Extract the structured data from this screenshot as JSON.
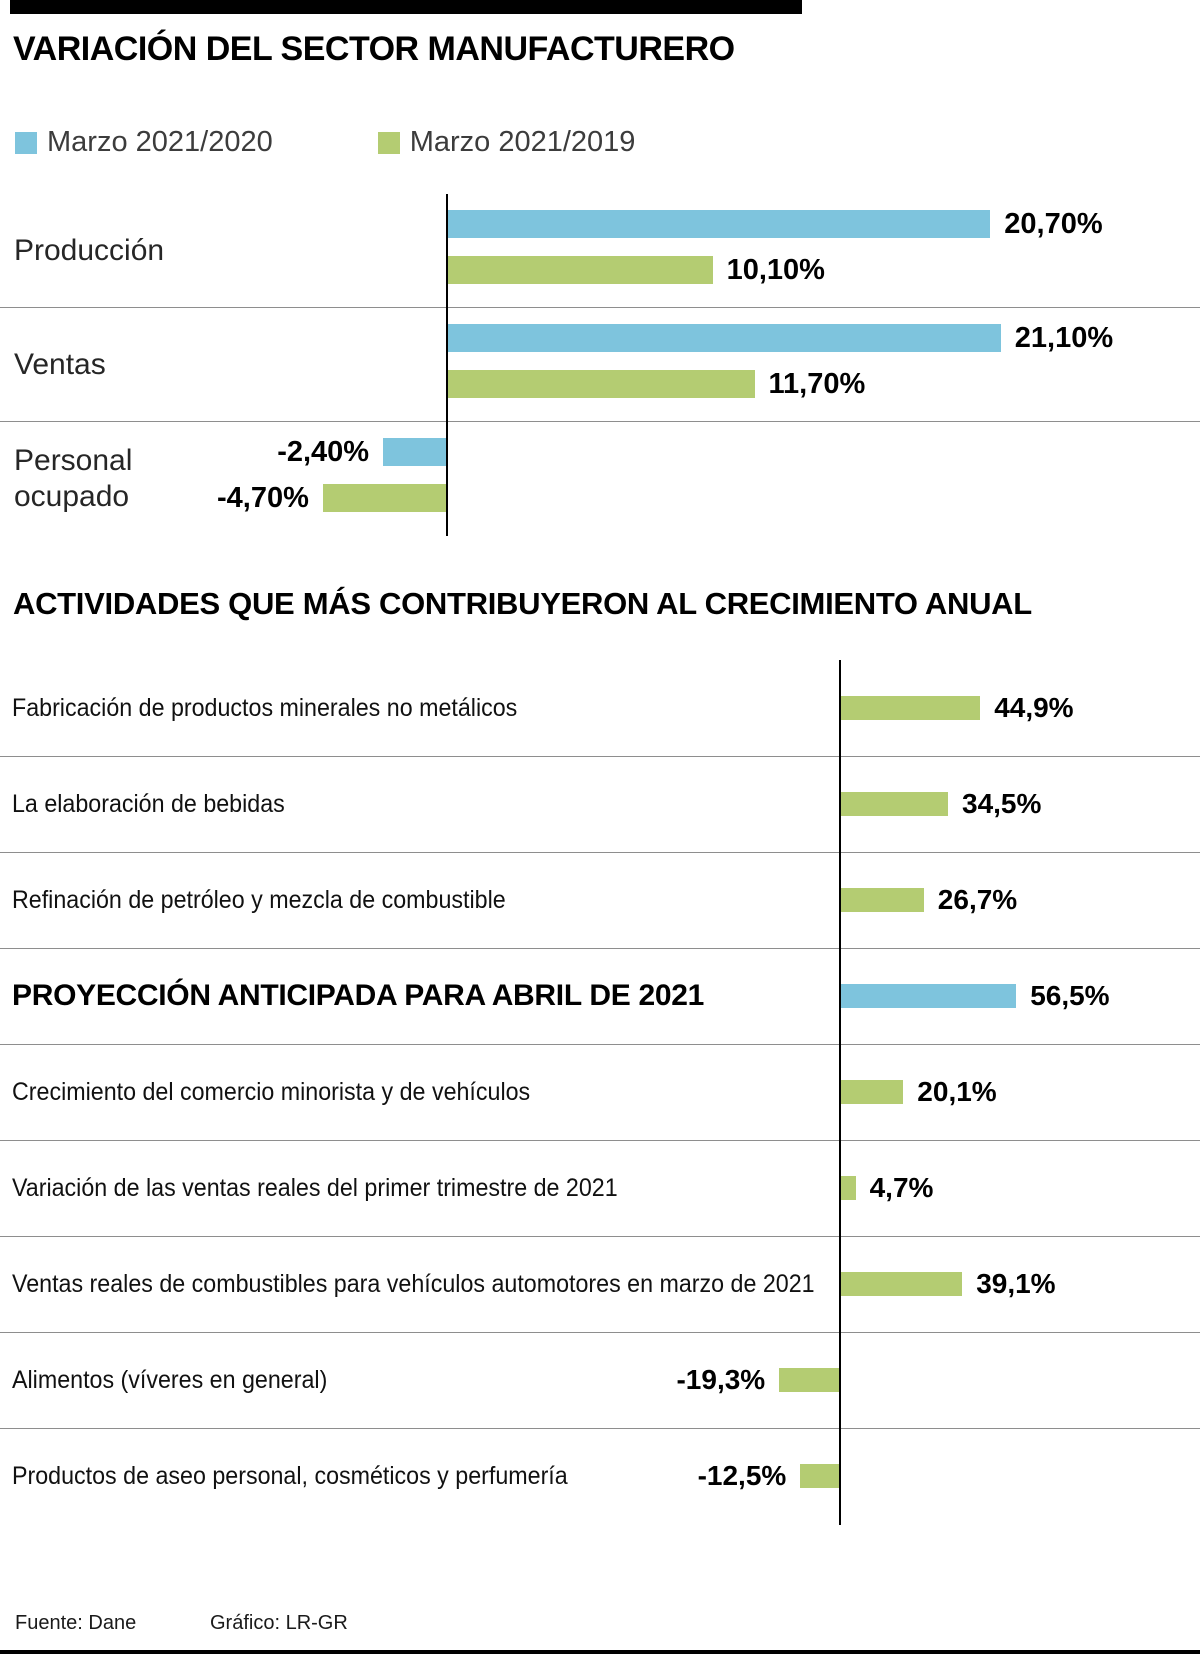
{
  "page": {
    "title": "VARIACIÓN DEL SECTOR MANUFACTURERO",
    "footer": {
      "source": "Fuente: Dane",
      "credit": "Gráfico: LR-GR"
    }
  },
  "colors": {
    "blue": "#7EC4DD",
    "green": "#B4CC72",
    "axis": "#000000",
    "divider": "#8E8E8E",
    "accent_bar": "#000000"
  },
  "chart_data": [
    {
      "type": "bar",
      "orientation": "horizontal",
      "title": "VARIACIÓN DEL SECTOR MANUFACTURERO",
      "legend_position": "top",
      "grid": false,
      "xlim": [
        -5,
        25
      ],
      "categories": [
        "Producción",
        "Ventas",
        "Personal ocupado"
      ],
      "series": [
        {
          "name": "Marzo 2021/2020",
          "color_key": "blue",
          "values": [
            20.7,
            21.1,
            -2.4
          ],
          "value_labels": [
            "20,70%",
            "21,10%",
            "-2,40%"
          ]
        },
        {
          "name": "Marzo 2021/2019",
          "color_key": "green",
          "values": [
            10.1,
            11.7,
            -4.7
          ],
          "value_labels": [
            "10,10%",
            "11,70%",
            "-4,70%"
          ]
        }
      ]
    },
    {
      "type": "bar",
      "orientation": "horizontal",
      "title": "ACTIVIDADES QUE MÁS CONTRIBUYERON AL CRECIMIENTO ANUAL",
      "grid": false,
      "xlim": [
        -25,
        60
      ],
      "rows": [
        {
          "label": "Fabricación de productos minerales no metálicos",
          "value": 44.9,
          "value_label": "44,9%",
          "color_key": "green",
          "header": false
        },
        {
          "label": "La elaboración de bebidas",
          "value": 34.5,
          "value_label": "34,5%",
          "color_key": "green",
          "header": false
        },
        {
          "label": "Refinación de petróleo y mezcla de combustible",
          "value": 26.7,
          "value_label": "26,7%",
          "color_key": "green",
          "header": false
        },
        {
          "label": "PROYECCIÓN ANTICIPADA PARA ABRIL DE 2021",
          "value": 56.5,
          "value_label": "56,5%",
          "color_key": "blue",
          "header": true
        },
        {
          "label": "Crecimiento del comercio minorista y de vehículos",
          "value": 20.1,
          "value_label": "20,1%",
          "color_key": "green",
          "header": false
        },
        {
          "label": "Variación de las ventas reales del primer trimestre de 2021",
          "value": 4.7,
          "value_label": "4,7%",
          "color_key": "green",
          "header": false
        },
        {
          "label": "Ventas reales de combustibles para vehículos automotores en marzo de 2021",
          "value": 39.1,
          "value_label": "39,1%",
          "color_key": "green",
          "header": false
        },
        {
          "label": "Alimentos (víveres en general)",
          "value": -19.3,
          "value_label": "-19,3%",
          "color_key": "green",
          "header": false
        },
        {
          "label": "Productos de aseo personal, cosméticos y perfumería",
          "value": -12.5,
          "value_label": "-12,5%",
          "color_key": "green",
          "header": false
        }
      ]
    }
  ]
}
